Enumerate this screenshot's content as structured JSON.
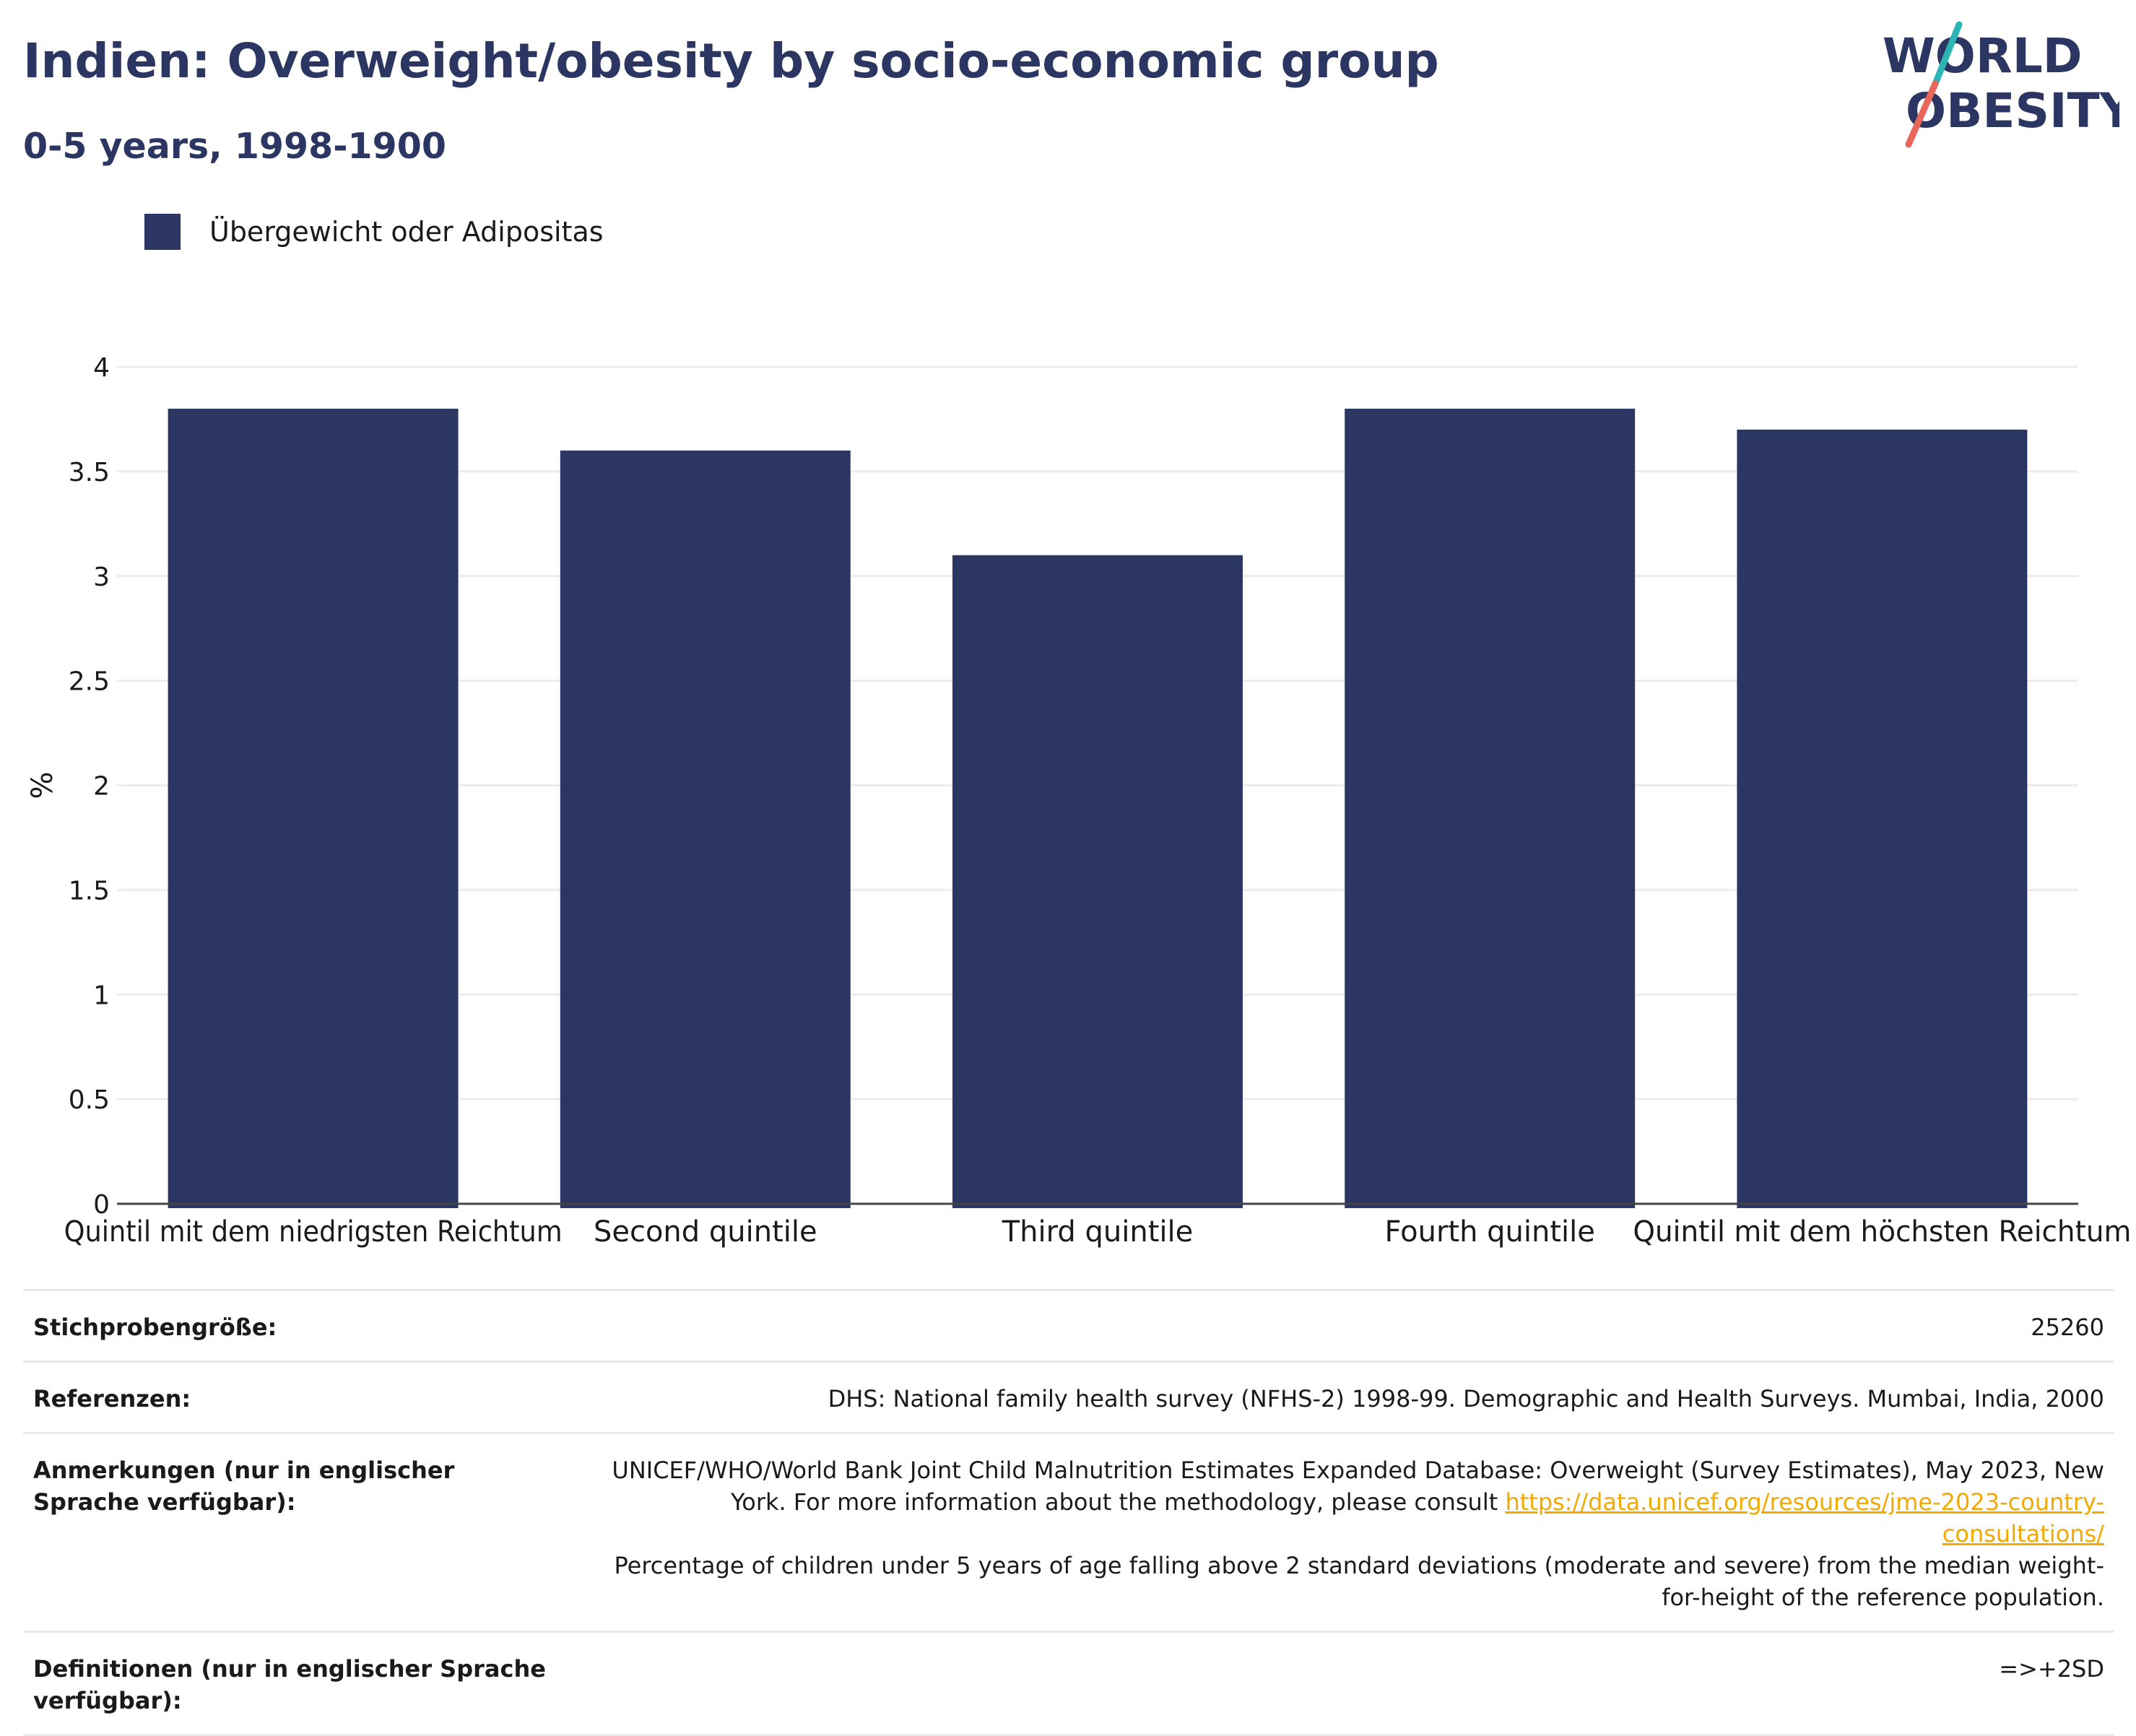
{
  "header": {
    "title": "Indien: Overweight/obesity by socio-economic group",
    "subtitle": "0-5 years, 1998-1900"
  },
  "logo": {
    "line1": "WORLD",
    "line2": "OBESITY",
    "colors": {
      "text": "#2b3663",
      "slash_teal": "#2bb5b5",
      "slash_coral": "#e8675a"
    }
  },
  "legend": {
    "label": "Übergewicht oder Adipositas",
    "color": "#2b3663"
  },
  "chart_data": {
    "type": "bar",
    "categories": [
      "Quintil mit dem niedrigsten Reichtum",
      "Second quintile",
      "Third quintile",
      "Fourth quintile",
      "Quintil mit dem höchsten Reichtum"
    ],
    "series": [
      {
        "name": "Übergewicht oder Adipositas",
        "values": [
          3.8,
          3.6,
          3.1,
          3.8,
          3.7
        ],
        "color": "#2b3663"
      }
    ],
    "ylabel": "%",
    "ylim": [
      0,
      4
    ],
    "yticks": [
      "0",
      "0.5",
      "1",
      "1.5",
      "2",
      "2.5",
      "3",
      "3.5",
      "4"
    ],
    "grid": true,
    "legend_position": "top-left"
  },
  "meta": {
    "sample_label": "Stichprobengröße:",
    "sample_value": "25260",
    "references_label": "Referenzen:",
    "references_value": "DHS: National family health survey (NFHS-2) 1998-99. Demographic and Health Surveys. Mumbai, India, 2000",
    "notes_label": "Anmerkungen (nur in englischer Sprache verfügbar):",
    "notes_text_1": "UNICEF/WHO/World Bank Joint Child Malnutrition Estimates Expanded Database: Overweight (Survey Estimates), May 2023, New York. For more information about the methodology, please consult ",
    "notes_link": "https://data.unicef.org/resources/jme-2023-country-consultations/",
    "notes_text_2": "Percentage of children under 5 years of age falling above 2 standard deviations (moderate and severe) from the median weight-for-height of the reference population.",
    "definitions_label": "Definitionen (nur in englischer Sprache verfügbar):",
    "definitions_value": "=>+2SD"
  }
}
